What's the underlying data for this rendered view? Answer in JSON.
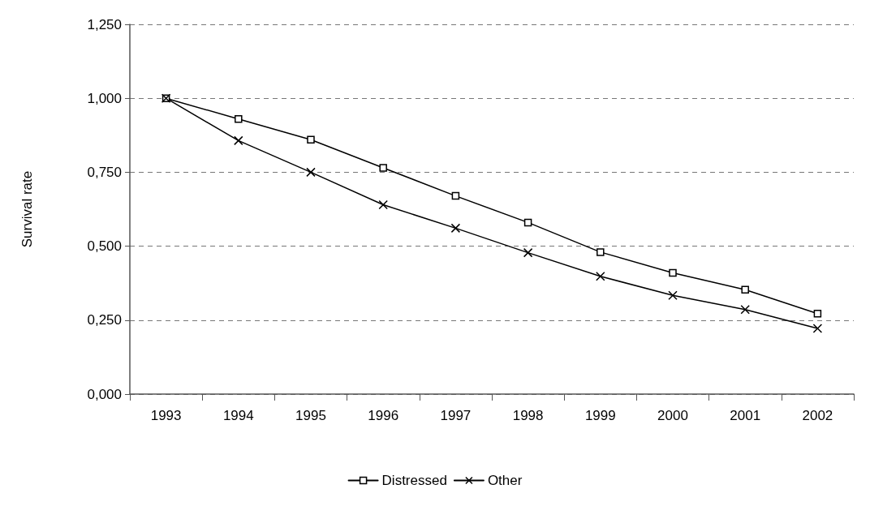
{
  "chart_data": {
    "type": "line",
    "ylabel": "Survival rate",
    "categories": [
      "1993",
      "1994",
      "1995",
      "1996",
      "1997",
      "1998",
      "1999",
      "2000",
      "2001",
      "2002"
    ],
    "series": [
      {
        "name": "Distressed",
        "color": "#000000",
        "marker": "square",
        "values": [
          1.0,
          0.93,
          0.86,
          0.765,
          0.67,
          0.58,
          0.48,
          0.41,
          0.353,
          0.272
        ]
      },
      {
        "name": "Other",
        "color": "#000000",
        "marker": "cross",
        "values": [
          1.0,
          0.857,
          0.75,
          0.64,
          0.561,
          0.478,
          0.398,
          0.334,
          0.286,
          0.222
        ]
      }
    ],
    "ylim": [
      0,
      1.25
    ],
    "yticks": [
      {
        "value": 0,
        "label": "0,000"
      },
      {
        "value": 0.25,
        "label": "0,250"
      },
      {
        "value": 0.5,
        "label": "0,500"
      },
      {
        "value": 0.75,
        "label": "0,750"
      },
      {
        "value": 1,
        "label": "1,000"
      },
      {
        "value": 1.25,
        "label": "1,250"
      }
    ],
    "grid": "y",
    "legend": "bottom",
    "line_style": "solid"
  }
}
